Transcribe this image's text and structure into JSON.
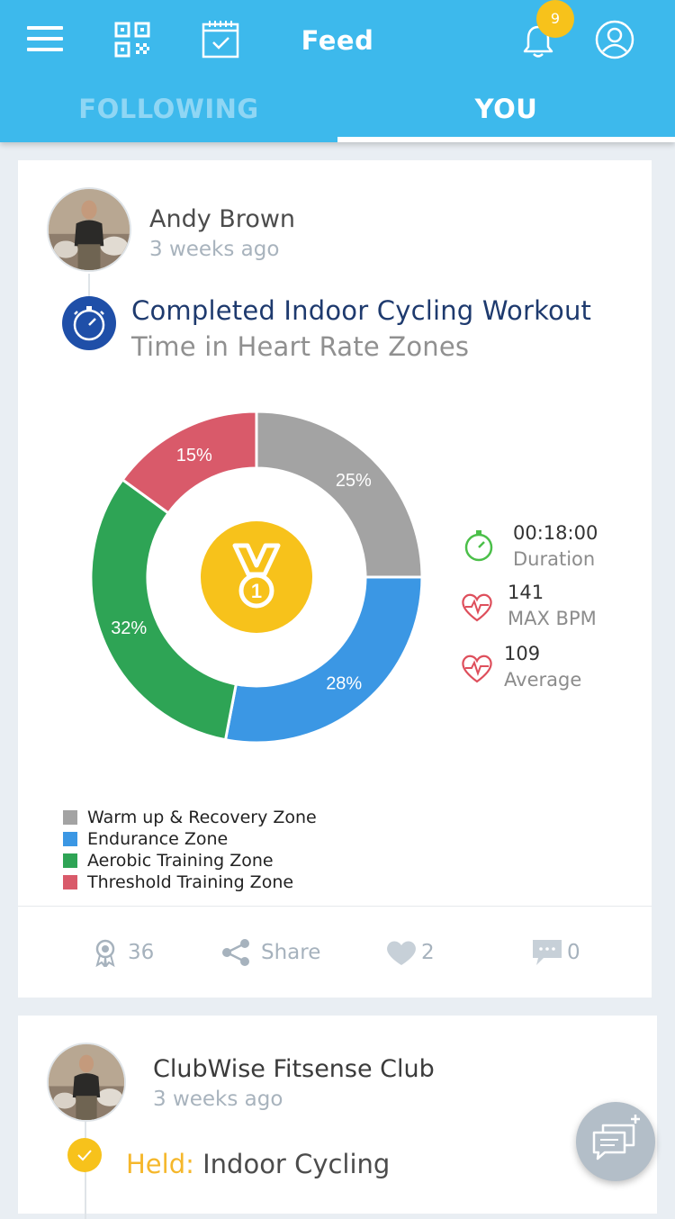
{
  "header": {
    "title": "Feed",
    "notification_count": "9",
    "icons": [
      "menu-icon",
      "qr-code-icon",
      "calendar-icon",
      "bell-icon",
      "profile-icon"
    ],
    "color": "#3db9ec"
  },
  "tabs": [
    {
      "label": "FOLLOWING",
      "active": false
    },
    {
      "label": "YOU",
      "active": true
    }
  ],
  "posts": [
    {
      "author": "Andy Brown",
      "time": "3 weeks ago",
      "activity_title": "Completed Indoor Cycling Workout",
      "activity_subtitle": "Time in Heart Rate Zones",
      "stats": [
        {
          "value": "00:18:00",
          "label": "Duration",
          "icon": "stopwatch-icon"
        },
        {
          "value": "141",
          "label": "MAX BPM",
          "icon": "heart-rate-icon"
        },
        {
          "value": "109",
          "label": "Average",
          "icon": "heart-rate-icon"
        }
      ],
      "actions": {
        "awards": "36",
        "share": "Share",
        "likes": "2",
        "comments": "0"
      }
    },
    {
      "author": "ClubWise Fitsense Club",
      "time": "3 weeks ago",
      "held_prefix": "Held:",
      "held_text": "Indoor Cycling"
    }
  ],
  "chart_data": {
    "type": "pie",
    "categories": [
      "Warm up & Recovery Zone",
      "Endurance Zone",
      "Aerobic Training Zone",
      "Threshold Training Zone"
    ],
    "values": [
      25,
      28,
      32,
      15
    ],
    "value_labels": [
      "25%",
      "28%",
      "32%",
      "15%"
    ],
    "colors": [
      "#a3a3a3",
      "#3b97e4",
      "#2ea455",
      "#d95a6a"
    ],
    "legend_placement": "bottom-left",
    "center_icon": "gold-medal-icon"
  }
}
